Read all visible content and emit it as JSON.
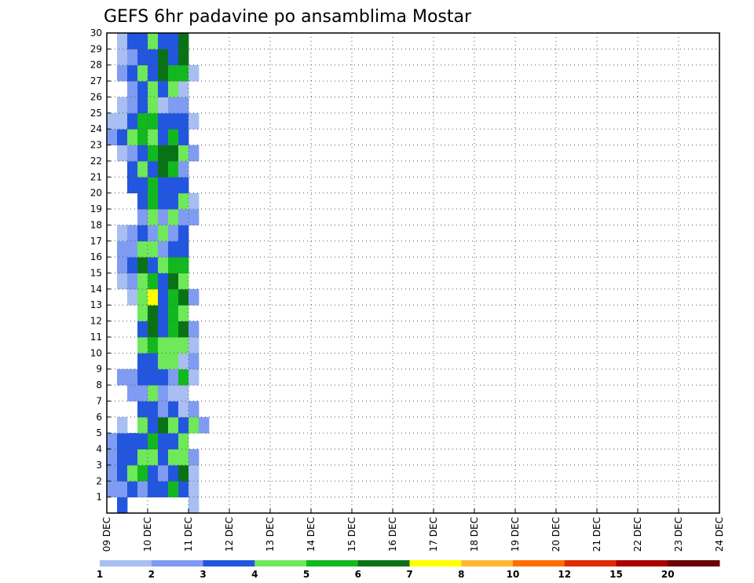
{
  "chart_data": {
    "type": "heatmap",
    "title": "GEFS 6hr padavine po ansamblima Mostar",
    "xlabel": "",
    "ylabel": "",
    "x_ticks": [
      "09 DEC",
      "10 DEC",
      "11 DEC",
      "12 DEC",
      "13 DEC",
      "14 DEC",
      "15 DEC",
      "16 DEC",
      "17 DEC",
      "18 DEC",
      "19 DEC",
      "20 DEC",
      "21 DEC",
      "22 DEC",
      "23 DEC",
      "24 DEC"
    ],
    "y_ticks": [
      1,
      2,
      3,
      4,
      5,
      6,
      7,
      8,
      9,
      10,
      11,
      12,
      13,
      14,
      15,
      16,
      17,
      18,
      19,
      20,
      21,
      22,
      23,
      24,
      25,
      26,
      27,
      28,
      29,
      30
    ],
    "members": 30,
    "time_steps": 60,
    "grid": true,
    "legend_placement": "bottom",
    "color_levels": [
      {
        "label": "1",
        "color": "#a9bff2"
      },
      {
        "label": "2",
        "color": "#7f9cf2"
      },
      {
        "label": "3",
        "color": "#2356de"
      },
      {
        "label": "4",
        "color": "#6fe85a"
      },
      {
        "label": "5",
        "color": "#12b81f"
      },
      {
        "label": "6",
        "color": "#0a7216"
      },
      {
        "label": "7",
        "color": "#ffff00"
      },
      {
        "label": "8",
        "color": "#ffb733"
      },
      {
        "label": "10",
        "color": "#ff6e00"
      },
      {
        "label": "12",
        "color": "#e02a00"
      },
      {
        "label": "15",
        "color": "#a80000"
      },
      {
        "label": "20",
        "color": "#6a0000"
      }
    ],
    "legend_labels": [
      "1",
      "2",
      "3",
      "4",
      "5",
      "6",
      "7",
      "8",
      "10",
      "12",
      "15",
      "20"
    ],
    "cells": [
      "030000001000000000000000000000000000000000000000000000000000",
      "223233531000000000000000000000000000000000000000000000000000",
      "234532361000000000000000000000000000000000000000000000000000",
      "233443442000000000000000000000000000000000000000000000000000",
      "233353340000000000000000000000000000000000000000000000000000",
      "010436434200000000000000000000000000000000000000000000000000",
      "000332312000000000000000000000000000000000000000000000000000",
      "002242110000000000000000000000000000000000000000000000000000",
      "022333251000000000000000000000000000000000000000000000000000",
      "000334412000000000000000000000000000000000000000000000000000",
      "000454441000000000000000000000000000000000000000000000000000",
      "000363562000000000000000000000000000000000000000000000000000",
      "000463540000000000000000000000000000000000000000000000000000",
      "001473562000000000000000000000000000000000000000000000000000",
      "012453640000000000000000000000000000000000000000000000000000",
      "023634550000000000000000000000000000000000000000000000000000",
      "022442330000000000000000000000000000000000000000000000000000",
      "012324230000000000000000000000000000000000000000000000000000",
      "000242422000000000000000000000000000000000000000000000000000",
      "000353341000000000000000000000000000000000000000000000000000",
      "003353330000000000000000000000000000000000000000000000000000",
      "003436520000000000000000000000000000000000000000000000000000",
      "012356642000000000000000000000000000000000000000000000000000",
      "234543530000000000000000000000000000000000000000000000000000",
      "113553331000000000000000000000000000000000000000000000000000",
      "012341220000000000000000000000000000000000000000000000000000",
      "002343410000000000000000000000000000000000000000000000000000",
      "023436551000000000000000000000000000000000000000000000000000",
      "012336360000000000000000000000000000000000000000000000000000",
      "013343360000000000000000000000000000000000000000000000000000"
    ]
  }
}
